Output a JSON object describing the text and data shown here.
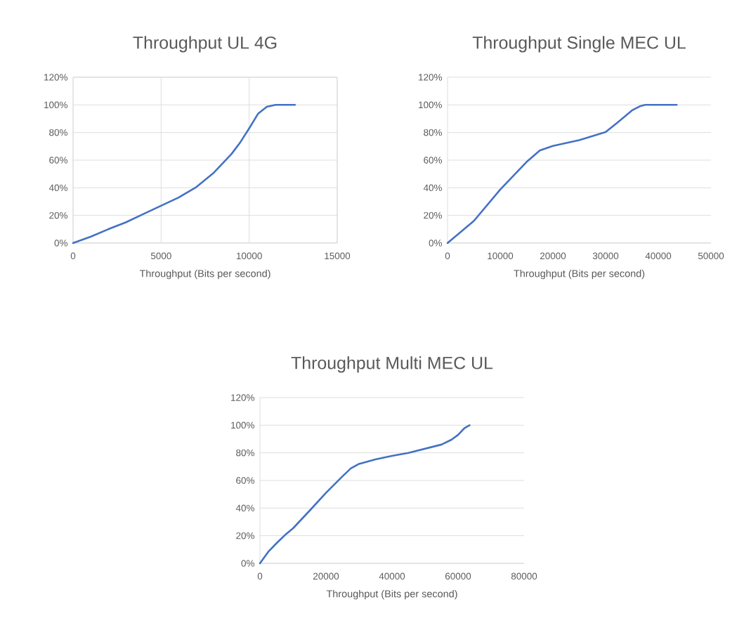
{
  "chart_data": [
    {
      "type": "line",
      "title": "Throughput UL 4G",
      "xlabel": "Throughput (Bits per second)",
      "color": "#4472c4",
      "x": [
        0,
        1000,
        2000,
        3000,
        4000,
        5000,
        6000,
        7000,
        8000,
        9000,
        9500,
        10000,
        10500,
        11000,
        11500,
        12000,
        12600
      ],
      "values": [
        0,
        4.6,
        10,
        15,
        21,
        27,
        33,
        40.5,
        51,
        64.5,
        73,
        83,
        93.5,
        98.6,
        100,
        100,
        100
      ],
      "xlim": [
        0,
        15000
      ],
      "xticks": [
        0,
        5000,
        10000,
        15000
      ],
      "ylim": [
        0,
        120
      ],
      "yticks": [
        {
          "value": 0,
          "label": "0%"
        },
        {
          "value": 20,
          "label": "20%"
        },
        {
          "value": 40,
          "label": "40%"
        },
        {
          "value": 60,
          "label": "60%"
        },
        {
          "value": 80,
          "label": "80%"
        },
        {
          "value": 100,
          "label": "100%"
        },
        {
          "value": 120,
          "label": "120%"
        }
      ],
      "grid": true
    },
    {
      "type": "line",
      "title": "Throughput Single MEC UL",
      "xlabel": "Throughput (Bits per second)",
      "color": "#4472c4",
      "x": [
        0,
        5000,
        10000,
        15000,
        17500,
        20000,
        25000,
        30000,
        32500,
        35000,
        36500,
        37500,
        43500
      ],
      "values": [
        0,
        16,
        38.7,
        58.7,
        67,
        70.3,
        74.5,
        80.3,
        88,
        96,
        99,
        100,
        100
      ],
      "xlim": [
        0,
        50000
      ],
      "xticks": [
        0,
        10000,
        20000,
        30000,
        40000,
        50000
      ],
      "ylim": [
        0,
        120
      ],
      "yticks": [
        {
          "value": 0,
          "label": "0%"
        },
        {
          "value": 20,
          "label": "20%"
        },
        {
          "value": 40,
          "label": "40%"
        },
        {
          "value": 60,
          "label": "60%"
        },
        {
          "value": 80,
          "label": "80%"
        },
        {
          "value": 100,
          "label": "100%"
        },
        {
          "value": 120,
          "label": "120%"
        }
      ],
      "grid": "y"
    },
    {
      "type": "line",
      "title": "Throughput Multi MEC UL",
      "xlabel": "Throughput (Bits per second)",
      "color": "#4472c4",
      "x": [
        0,
        2500,
        5000,
        7500,
        10000,
        15000,
        20000,
        25000,
        27500,
        30000,
        35000,
        40000,
        45000,
        50000,
        55000,
        58000,
        60000,
        62000,
        63500
      ],
      "values": [
        0,
        8.3,
        14.5,
        20.3,
        25.3,
        38,
        51,
        63,
        68.7,
        72,
        75.3,
        77.8,
        80,
        83,
        86,
        89.5,
        93,
        98,
        100
      ],
      "xlim": [
        0,
        80000
      ],
      "xticks": [
        0,
        20000,
        40000,
        60000,
        80000
      ],
      "ylim": [
        0,
        120
      ],
      "yticks": [
        {
          "value": 0,
          "label": "0%"
        },
        {
          "value": 20,
          "label": "20%"
        },
        {
          "value": 40,
          "label": "40%"
        },
        {
          "value": 60,
          "label": "60%"
        },
        {
          "value": 80,
          "label": "80%"
        },
        {
          "value": 100,
          "label": "100%"
        },
        {
          "value": 120,
          "label": "120%"
        }
      ],
      "grid": "y"
    }
  ]
}
